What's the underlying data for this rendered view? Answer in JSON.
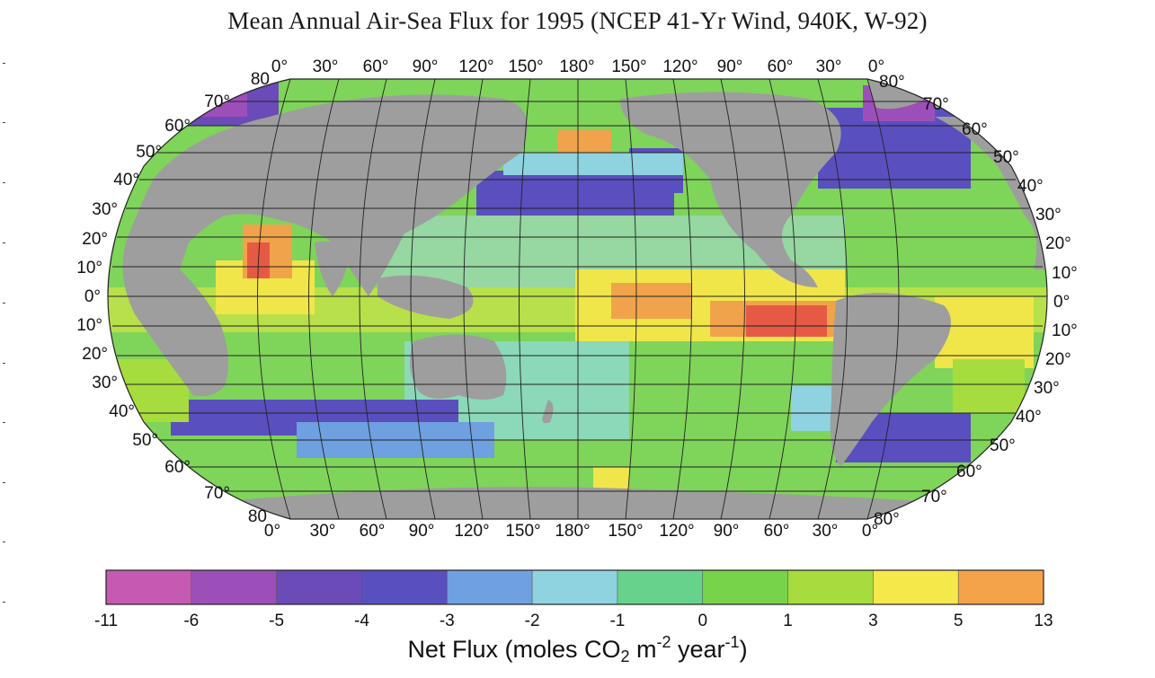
{
  "title": "Mean Annual Air-Sea Flux for 1995 (NCEP 41-Yr Wind, 940K, W-92)",
  "map": {
    "projection": "Robinson-like world map, Pacific centered",
    "colors": {
      "land": "#9e9e9e",
      "ocean_missing": "#ffffff",
      "grid": "#222222"
    },
    "top_longitude_labels": [
      "0°",
      "30°",
      "60°",
      "90°",
      "120°",
      "150°",
      "180°",
      "150°",
      "120°",
      "90°",
      "60°",
      "30°",
      "0°"
    ],
    "bottom_longitude_labels": [
      "0°",
      "30°",
      "60°",
      "90°",
      "120°",
      "150°",
      "180°",
      "150°",
      "120°",
      "90°",
      "60°",
      "30°",
      "0°"
    ],
    "left_latitude_labels": [
      "80",
      "70°",
      "60°",
      "50°",
      "40°",
      "30°",
      "20°",
      "10°",
      "0°",
      "10°",
      "20°",
      "30°",
      "40°",
      "50°",
      "60°",
      "70°",
      "80"
    ],
    "right_latitude_labels": [
      "80°",
      "70°",
      "60°",
      "50°",
      "40°",
      "30°",
      "20°",
      "10°",
      "0°",
      "10°",
      "20°",
      "30°",
      "40°",
      "50°",
      "60°",
      "70°",
      "80°"
    ]
  },
  "legend": {
    "ticks": [
      "-11",
      "-6",
      "-5",
      "-4",
      "-3",
      "-2",
      "-1",
      "0",
      "1",
      "3",
      "5",
      "13"
    ],
    "colors": [
      "#c65ab3",
      "#9d4fb9",
      "#6a4bb8",
      "#5a4fbf",
      "#6fa0e0",
      "#8fd3e0",
      "#66d28c",
      "#77d44a",
      "#a6dc3e",
      "#f5e84a",
      "#f5a34a",
      "#e8534a"
    ],
    "unit_prefix": "Net Flux (moles CO",
    "unit_sub": "2",
    "unit_m": " m",
    "unit_sup1": "-2",
    "unit_year": " year",
    "unit_sup2": "-1",
    "unit_suffix": ")"
  }
}
